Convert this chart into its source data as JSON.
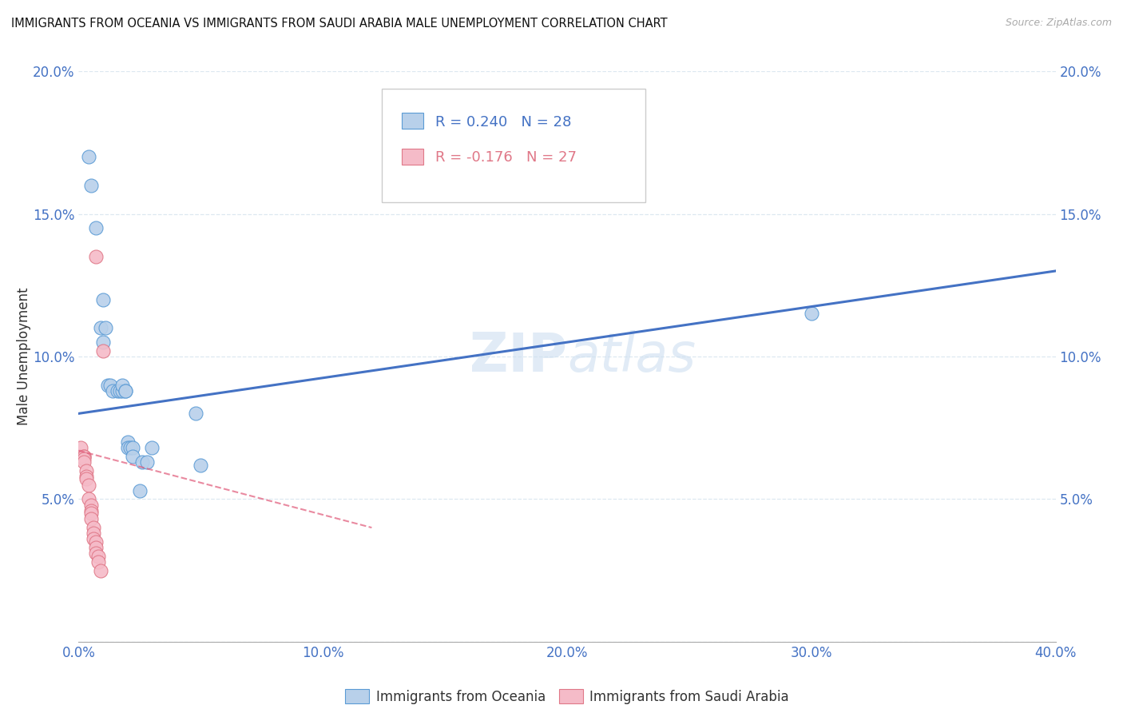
{
  "title": "IMMIGRANTS FROM OCEANIA VS IMMIGRANTS FROM SAUDI ARABIA MALE UNEMPLOYMENT CORRELATION CHART",
  "source": "Source: ZipAtlas.com",
  "ylabel": "Male Unemployment",
  "legend_label_blue": "Immigrants from Oceania",
  "legend_label_pink": "Immigrants from Saudi Arabia",
  "r_blue": "R = 0.240",
  "n_blue": "N = 28",
  "r_pink": "R = -0.176",
  "n_pink": "N = 27",
  "xlim": [
    0.0,
    0.4
  ],
  "ylim": [
    0.0,
    0.2
  ],
  "xticks": [
    0.0,
    0.1,
    0.2,
    0.3,
    0.4
  ],
  "yticks": [
    0.0,
    0.05,
    0.1,
    0.15,
    0.2
  ],
  "blue_color": "#b8d0ea",
  "blue_edge_color": "#5b9bd5",
  "pink_color": "#f5bbc8",
  "pink_edge_color": "#e07888",
  "blue_line_color": "#4472c4",
  "pink_line_color": "#e05878",
  "watermark_color": "#cddff0",
  "blue_scatter_x": [
    0.004,
    0.005,
    0.007,
    0.009,
    0.01,
    0.01,
    0.011,
    0.012,
    0.013,
    0.014,
    0.016,
    0.017,
    0.018,
    0.018,
    0.019,
    0.019,
    0.02,
    0.02,
    0.021,
    0.022,
    0.022,
    0.025,
    0.026,
    0.028,
    0.03,
    0.048,
    0.05,
    0.3
  ],
  "blue_scatter_y": [
    0.17,
    0.16,
    0.145,
    0.11,
    0.12,
    0.105,
    0.11,
    0.09,
    0.09,
    0.088,
    0.088,
    0.088,
    0.088,
    0.09,
    0.088,
    0.088,
    0.07,
    0.068,
    0.068,
    0.068,
    0.065,
    0.053,
    0.063,
    0.063,
    0.068,
    0.08,
    0.062,
    0.115
  ],
  "pink_scatter_x": [
    0.001,
    0.001,
    0.001,
    0.002,
    0.002,
    0.002,
    0.002,
    0.003,
    0.003,
    0.003,
    0.004,
    0.004,
    0.005,
    0.005,
    0.005,
    0.005,
    0.006,
    0.006,
    0.006,
    0.007,
    0.007,
    0.007,
    0.007,
    0.008,
    0.008,
    0.009,
    0.01
  ],
  "pink_scatter_y": [
    0.065,
    0.065,
    0.068,
    0.065,
    0.065,
    0.064,
    0.063,
    0.06,
    0.058,
    0.057,
    0.055,
    0.05,
    0.048,
    0.046,
    0.045,
    0.043,
    0.04,
    0.038,
    0.036,
    0.035,
    0.033,
    0.031,
    0.135,
    0.03,
    0.028,
    0.025,
    0.102
  ],
  "blue_line_x": [
    0.0,
    0.4
  ],
  "blue_line_y": [
    0.08,
    0.13
  ],
  "pink_line_x": [
    0.0,
    0.12
  ],
  "pink_line_y": [
    0.067,
    0.04
  ],
  "background_color": "#ffffff",
  "grid_color": "#dde8f0"
}
